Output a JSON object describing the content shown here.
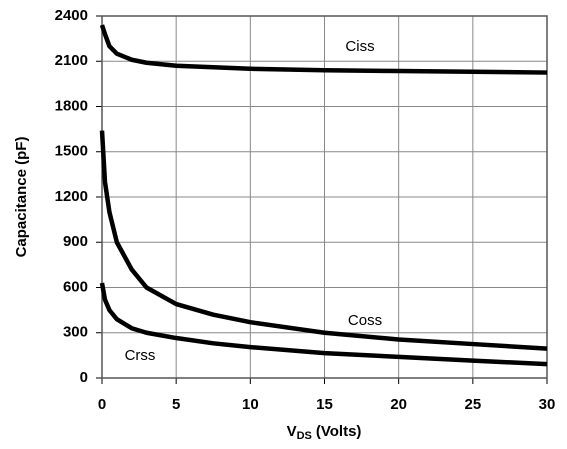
{
  "chart_data": {
    "type": "line",
    "ylabel": "Capacitance (pF)",
    "xlabel": {
      "main": "V",
      "sub": "DS",
      "rest": "(Volts)"
    },
    "x": [
      0,
      0.2,
      0.5,
      1,
      2,
      3,
      5,
      7.5,
      10,
      15,
      20,
      25,
      30
    ],
    "series": [
      {
        "name": "Ciss",
        "color": "#000000",
        "values": [
          2340,
          2280,
          2200,
          2150,
          2110,
          2090,
          2070,
          2060,
          2050,
          2040,
          2035,
          2030,
          2025
        ]
      },
      {
        "name": "Coss",
        "color": "#000000",
        "values": [
          1640,
          1300,
          1100,
          900,
          720,
          600,
          490,
          420,
          370,
          300,
          255,
          225,
          195
        ]
      },
      {
        "name": "Crss",
        "color": "#000000",
        "values": [
          630,
          520,
          450,
          390,
          330,
          300,
          265,
          230,
          205,
          165,
          140,
          115,
          92
        ]
      }
    ],
    "xlim": [
      0,
      30
    ],
    "xticks": [
      0,
      5,
      10,
      15,
      20,
      25,
      30
    ],
    "ylim": [
      0,
      2400
    ],
    "yticks": [
      0,
      300,
      600,
      900,
      1200,
      1500,
      1800,
      2100,
      2400
    ],
    "grid": true
  }
}
